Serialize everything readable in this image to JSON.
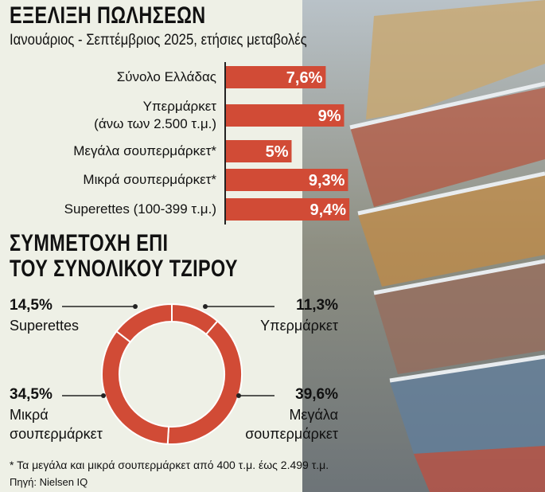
{
  "chart_data": [
    {
      "type": "bar",
      "title": "ΕΞΕΛΙΞΗ ΠΩΛΗΣΕΩΝ",
      "subtitle": "Ιανουάριος - Σεπτέμβριος 2025, ετήσιες μεταβολές",
      "categories": [
        "Σύνολο Ελλάδας",
        "Υπερμάρκετ\n(άνω των 2.500 τ.μ.)",
        "Μεγάλα σουπερμάρκετ*",
        "Μικρά σουπερμάρκετ*",
        "Superettes (100-399 τ.μ.)"
      ],
      "values": [
        7.6,
        9,
        5,
        9.3,
        9.4
      ],
      "value_labels": [
        "7,6%",
        "9%",
        "5%",
        "9,3%",
        "9,4%"
      ],
      "color": "#d14b36"
    },
    {
      "type": "pie",
      "title": "ΣΥΜΜΕΤΟΧΗ ΕΠΙ\nΤΟΥ ΣΥΝΟΛΙΚΟΥ ΤΖΙΡΟΥ",
      "categories": [
        "Υπερμάρκετ",
        "Μεγάλα\nσουπερμάρκετ",
        "Μικρά\nσουπερμάρκετ",
        "Superettes"
      ],
      "values": [
        11.3,
        39.6,
        34.5,
        14.5
      ],
      "value_labels": [
        "11,3%",
        "39,6%",
        "34,5%",
        "14,5%"
      ],
      "color": "#d14b36"
    }
  ],
  "footnote": "* Τα μεγάλα και μικρά σουπερμάρκετ από 400 τ.μ. έως 2.499 τ.μ.",
  "source": "Πηγή: Nielsen IQ"
}
